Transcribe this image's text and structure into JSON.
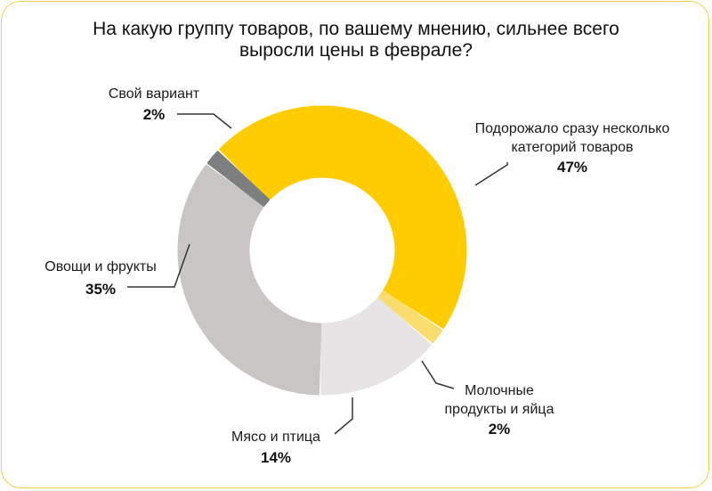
{
  "chart_data": {
    "type": "pie",
    "title": "На какую группу товаров, по вашему мнению, сильнее всего выросли цены в феврале?",
    "slices": [
      {
        "name": "Подорожало сразу несколько категорий товаров",
        "value": 47,
        "label": "47%",
        "color": "#ffcc00"
      },
      {
        "name": "Молочные продукты и яйца",
        "value": 2,
        "label": "2%",
        "color": "#f9dd6e"
      },
      {
        "name": "Мясо и птица",
        "value": 14,
        "label": "14%",
        "color": "#e6e4e4"
      },
      {
        "name": "Овощи и фрукты",
        "value": 35,
        "label": "35%",
        "color": "#c8c5c4"
      },
      {
        "name": "Свой вариант",
        "value": 2,
        "label": "2%",
        "color": "#7c7f7e"
      }
    ],
    "legend": "none"
  },
  "labels": {
    "multi": {
      "line1": "Подорожало сразу несколько",
      "line2": "категорий товаров",
      "pct": "47%"
    },
    "dairy": {
      "line1": "Молочные",
      "line2": "продукты и яйца",
      "pct": "2%"
    },
    "meat": {
      "line1": "Мясо и птица",
      "pct": "14%"
    },
    "veg": {
      "line1": "Овощи и фрукты",
      "pct": "35%"
    },
    "own": {
      "line1": "Свой вариант",
      "pct": "2%"
    }
  }
}
